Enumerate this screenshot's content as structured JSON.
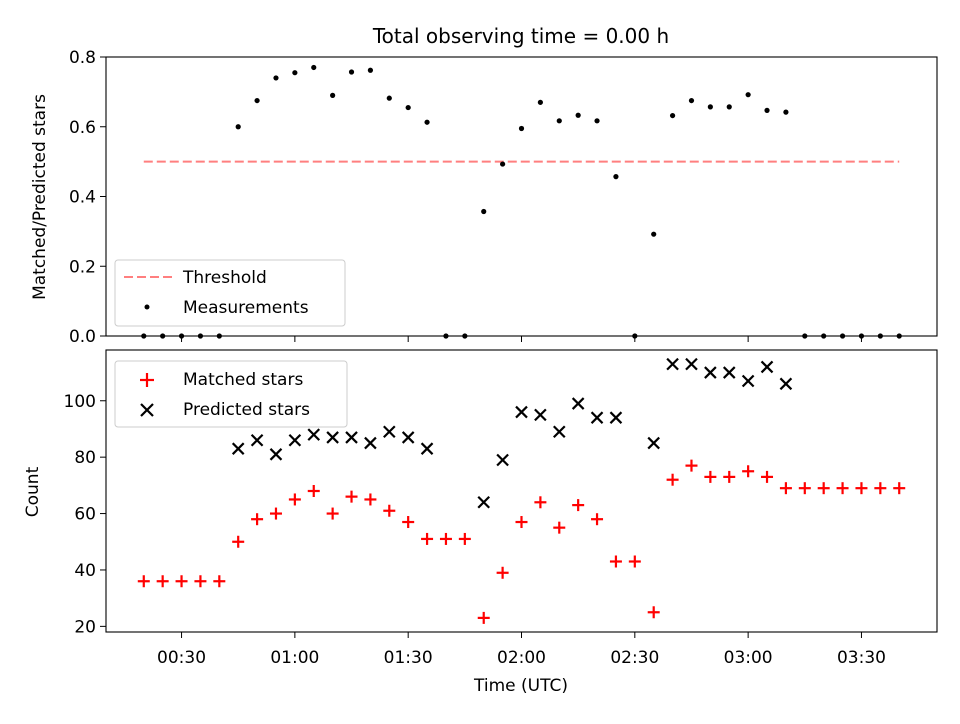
{
  "chart_data": [
    {
      "type": "scatter",
      "title": "Total observing time = 0.00 h",
      "ylabel": "Matched/Predicted stars",
      "xlabel": "",
      "ylim": [
        0,
        0.8
      ],
      "yticks": [
        "0.0",
        "0.2",
        "0.4",
        "0.6",
        "0.8"
      ],
      "legend_position": "bottom-left",
      "threshold": {
        "name": "Threshold",
        "value": 0.5,
        "x_start": "00:20",
        "x_end": "03:40",
        "color": "#ff7f7f",
        "style": "dashed"
      },
      "series": [
        {
          "name": "Measurements",
          "color": "#000000",
          "marker": "dot",
          "x": [
            "00:20",
            "00:25",
            "00:30",
            "00:35",
            "00:40",
            "00:45",
            "00:50",
            "00:55",
            "01:00",
            "01:05",
            "01:10",
            "01:15",
            "01:20",
            "01:25",
            "01:30",
            "01:35",
            "01:40",
            "01:45",
            "01:50",
            "01:55",
            "02:00",
            "02:05",
            "02:10",
            "02:15",
            "02:20",
            "02:25",
            "02:30",
            "02:35",
            "02:40",
            "02:45",
            "02:50",
            "02:55",
            "03:00",
            "03:05",
            "03:10",
            "03:15",
            "03:20",
            "03:25",
            "03:30",
            "03:35",
            "03:40"
          ],
          "y": [
            0,
            0,
            0,
            0,
            0,
            0.6,
            0.675,
            0.74,
            0.755,
            0.77,
            0.69,
            0.757,
            0.762,
            0.682,
            0.655,
            0.613,
            0,
            0,
            0.357,
            0.493,
            0.595,
            0.67,
            0.617,
            0.633,
            0.617,
            0.457,
            0,
            0.292,
            0.632,
            0.675,
            0.657,
            0.657,
            0.692,
            0.647,
            0.642,
            0,
            0,
            0,
            0,
            0,
            0
          ]
        }
      ]
    },
    {
      "type": "scatter",
      "title": "",
      "ylabel": "Count",
      "xlabel": "Time (UTC)",
      "ylim": [
        18,
        118
      ],
      "yticks": [
        "20",
        "40",
        "60",
        "80",
        "100"
      ],
      "xticks": [
        "00:30",
        "01:00",
        "01:30",
        "02:00",
        "02:30",
        "03:00",
        "03:30"
      ],
      "x_range": [
        "00:10",
        "03:50"
      ],
      "legend_position": "top-left",
      "series": [
        {
          "name": "Matched stars",
          "color": "#ff0000",
          "marker": "plus",
          "x": [
            "00:20",
            "00:25",
            "00:30",
            "00:35",
            "00:40",
            "00:45",
            "00:50",
            "00:55",
            "01:00",
            "01:05",
            "01:10",
            "01:15",
            "01:20",
            "01:25",
            "01:30",
            "01:35",
            "01:40",
            "01:45",
            "01:50",
            "01:55",
            "02:00",
            "02:05",
            "02:10",
            "02:15",
            "02:20",
            "02:25",
            "02:30",
            "02:35",
            "02:40",
            "02:45",
            "02:50",
            "02:55",
            "03:00",
            "03:05",
            "03:10",
            "03:15",
            "03:20",
            "03:25",
            "03:30",
            "03:35",
            "03:40"
          ],
          "y": [
            36,
            36,
            36,
            36,
            36,
            50,
            58,
            60,
            65,
            68,
            60,
            66,
            65,
            61,
            57,
            51,
            51,
            51,
            23,
            39,
            57,
            64,
            55,
            63,
            58,
            43,
            43,
            25,
            72,
            77,
            73,
            73,
            75,
            73,
            69,
            69,
            69,
            69,
            69,
            69,
            69
          ]
        },
        {
          "name": "Predicted stars",
          "color": "#000000",
          "marker": "x",
          "x": [
            "00:45",
            "00:50",
            "00:55",
            "01:00",
            "01:05",
            "01:10",
            "01:15",
            "01:20",
            "01:25",
            "01:30",
            "01:35",
            "01:50",
            "01:55",
            "02:00",
            "02:05",
            "02:10",
            "02:15",
            "02:20",
            "02:25",
            "02:35",
            "02:40",
            "02:45",
            "02:50",
            "02:55",
            "03:00",
            "03:05",
            "03:10"
          ],
          "y": [
            83,
            86,
            81,
            86,
            88,
            87,
            87,
            85,
            89,
            87,
            83,
            64,
            79,
            96,
            95,
            89,
            99,
            94,
            94,
            85,
            113,
            113,
            110,
            110,
            107,
            112,
            106
          ]
        }
      ]
    }
  ]
}
